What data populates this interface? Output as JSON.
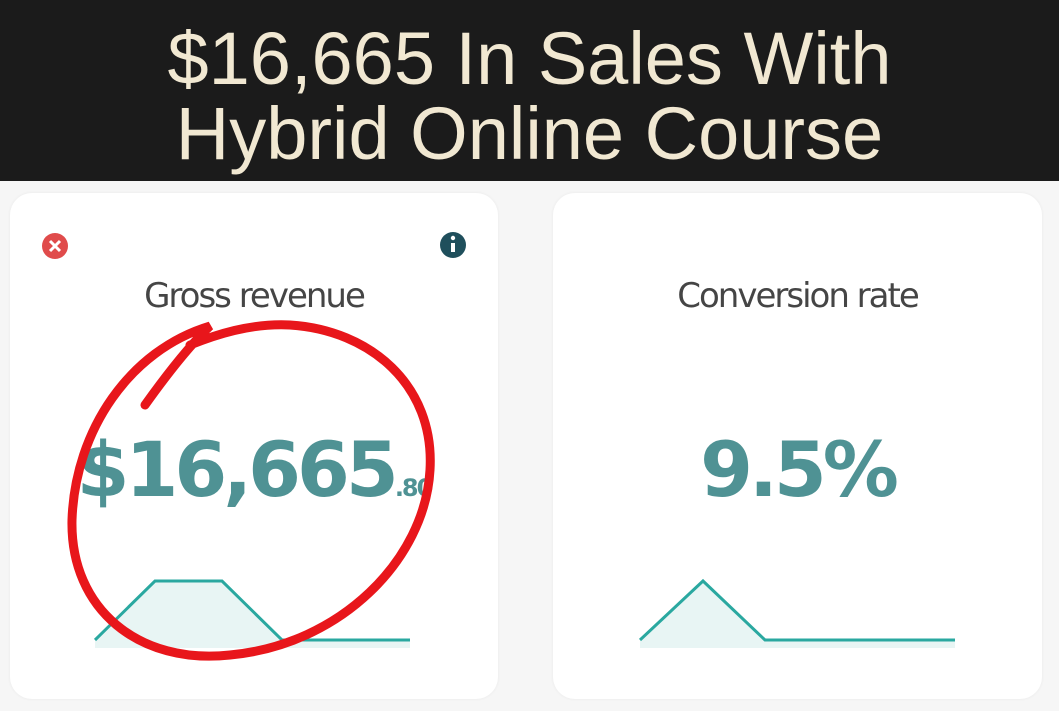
{
  "header": {
    "title_lines": [
      "$16,665 In Sales With",
      "Hybrid Online Course"
    ]
  },
  "cards": [
    {
      "label": "Gross revenue",
      "value": "$16,665",
      "value_fraction": ".80"
    },
    {
      "label": "Conversion rate",
      "value": "9.5%"
    }
  ]
}
